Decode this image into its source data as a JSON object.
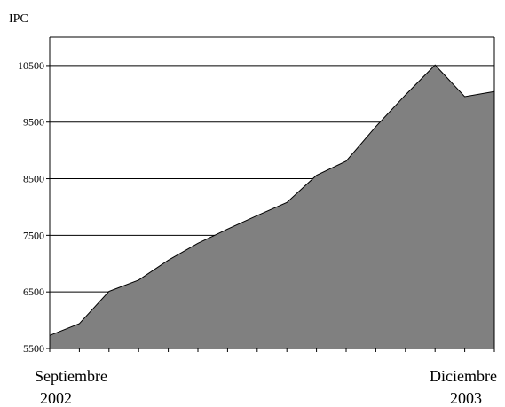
{
  "chart_data": {
    "type": "area",
    "title": "",
    "ylabel": "IPC",
    "xlabel": "",
    "ylim": [
      5500,
      11000
    ],
    "yticks": [
      5500,
      6500,
      7500,
      8500,
      9500,
      10500
    ],
    "grid": "horizontal",
    "x_labels": {
      "start": {
        "month": "Septiembre",
        "year": "2002"
      },
      "end": {
        "month": "Diciembre",
        "year": "2003"
      }
    },
    "values": [
      5730,
      5940,
      6510,
      6710,
      7060,
      7360,
      7610,
      7850,
      8080,
      8560,
      8810,
      9420,
      9980,
      10510,
      9950,
      10040
    ],
    "colors": {
      "area_fill": "#808080",
      "area_stroke": "#000000",
      "grid": "#000000",
      "axis": "#000000"
    }
  }
}
